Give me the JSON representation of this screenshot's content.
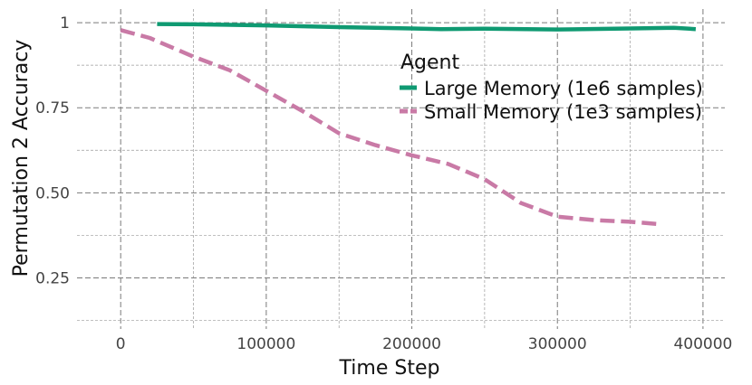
{
  "chart_data": {
    "type": "line",
    "xlabel": "Time Step",
    "ylabel": "Permutation 2 Accuracy",
    "xlim": [
      -30000,
      415000
    ],
    "ylim": [
      0.1,
      1.04
    ],
    "x_ticks": [
      0,
      100000,
      200000,
      300000,
      400000
    ],
    "y_ticks": [
      0.25,
      0.5,
      0.75,
      1
    ],
    "x_tick_labels": [
      "0",
      "100000",
      "200000",
      "300000",
      "400000"
    ],
    "y_tick_labels": [
      "0.25",
      "0.50",
      "0.75",
      "1"
    ],
    "grid": true,
    "legend": {
      "title": "Agent",
      "placement": "top-right"
    },
    "series": [
      {
        "name": "Large Memory (1e6 samples)",
        "color": "#0f9a72",
        "style": "solid",
        "x": [
          25000,
          50000,
          100000,
          150000,
          200000,
          220000,
          250000,
          300000,
          350000,
          380000,
          395000
        ],
        "y": [
          0.996,
          0.995,
          0.992,
          0.987,
          0.983,
          0.981,
          0.982,
          0.98,
          0.983,
          0.985,
          0.981
        ]
      },
      {
        "name": "Small Memory (1e3 samples)",
        "color": "#c97aa6",
        "style": "dashed",
        "x": [
          0,
          20000,
          50000,
          75000,
          100000,
          125000,
          150000,
          175000,
          200000,
          225000,
          250000,
          275000,
          300000,
          325000,
          350000,
          370000
        ],
        "y": [
          0.978,
          0.955,
          0.9,
          0.86,
          0.8,
          0.74,
          0.675,
          0.64,
          0.61,
          0.585,
          0.54,
          0.47,
          0.43,
          0.42,
          0.415,
          0.408
        ]
      }
    ]
  }
}
